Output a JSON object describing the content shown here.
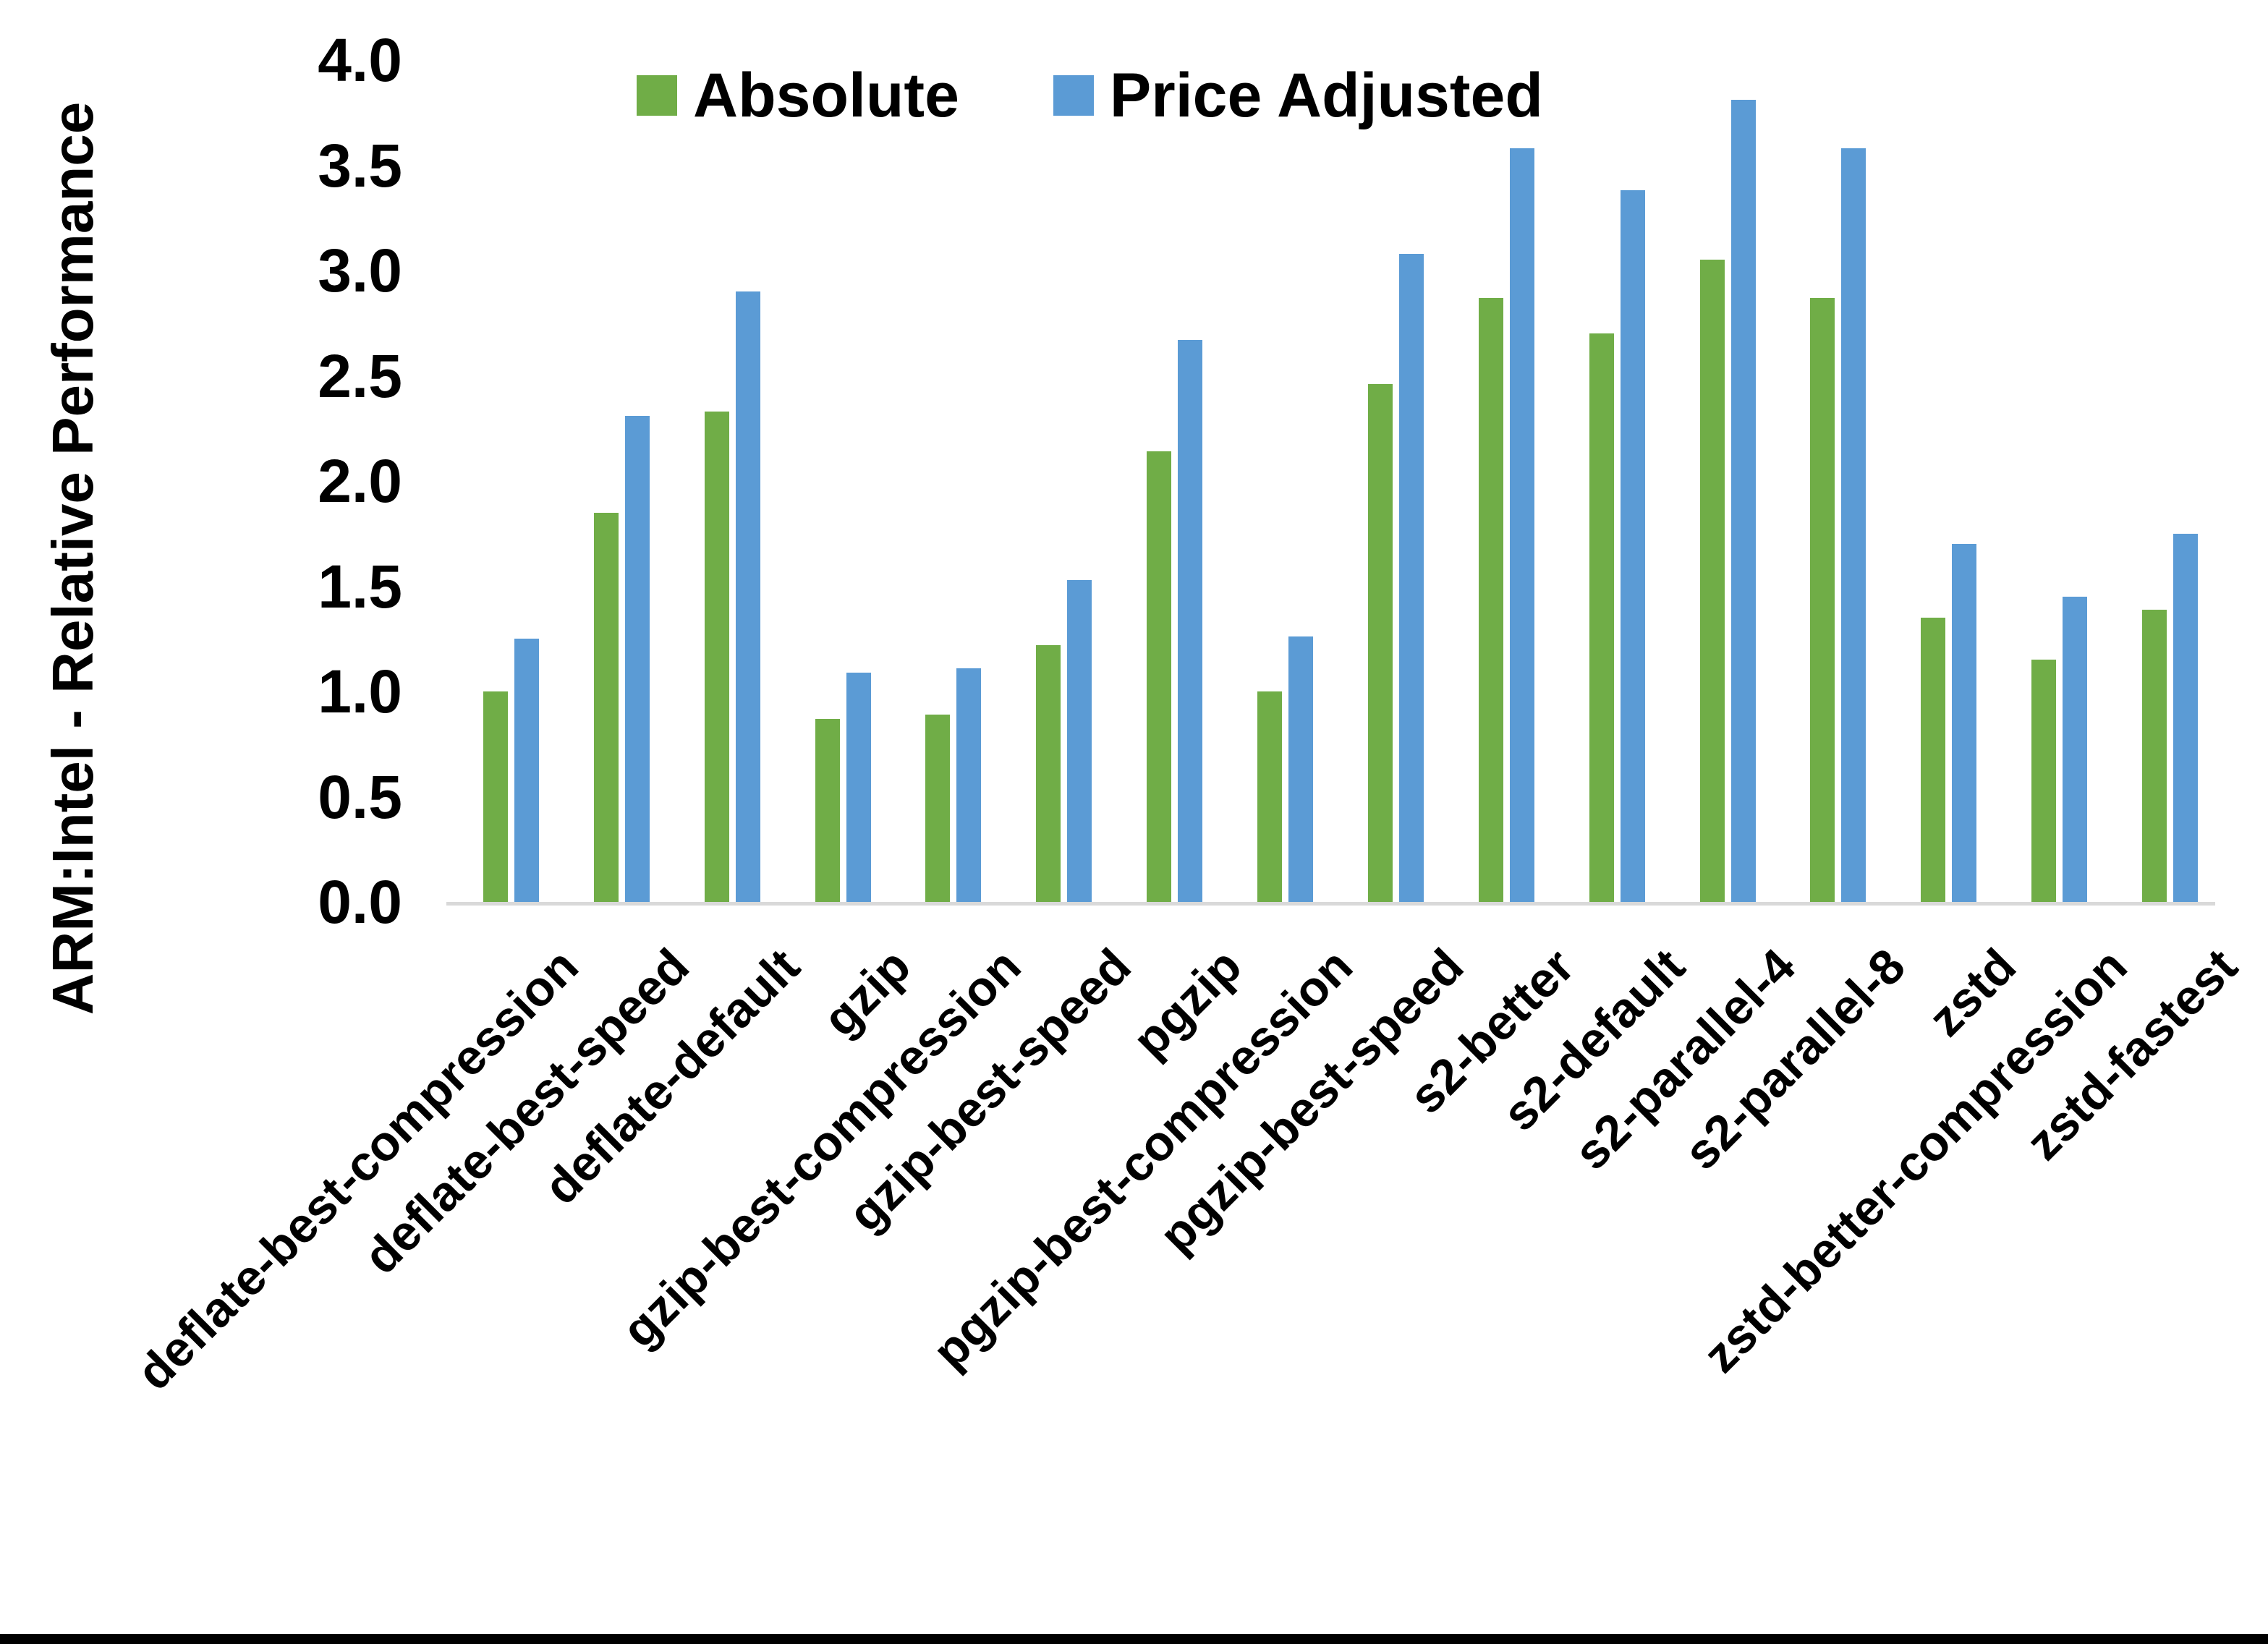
{
  "chart_data": {
    "type": "bar",
    "title": "",
    "xlabel": "",
    "ylabel": "ARM:Intel - Relative Performance",
    "ylim": [
      0.0,
      4.0
    ],
    "ytick_step": 0.5,
    "ytick_labels": [
      "0.0",
      "0.5",
      "1.0",
      "1.5",
      "2.0",
      "2.5",
      "3.0",
      "3.5",
      "4.0"
    ],
    "grid": false,
    "legend_position": "top-center",
    "categories": [
      "deflate-best-compression",
      "deflate-best-speed",
      "deflate-default",
      "gzip",
      "gzip-best-compression",
      "gzip-best-speed",
      "pgzip",
      "pgzip-best-compression",
      "pgzip-best-speed",
      "s2-better",
      "s2-default",
      "s2-parallel-4",
      "s2-parallel-8",
      "zstd",
      "zstd-better-compression",
      "zstd-fastest"
    ],
    "series": [
      {
        "name": "Absolute",
        "color": "#70AD47",
        "values": [
          1.0,
          1.85,
          2.33,
          0.87,
          0.89,
          1.22,
          2.14,
          1.0,
          2.46,
          2.87,
          2.7,
          3.05,
          2.87,
          1.35,
          1.15,
          1.39
        ]
      },
      {
        "name": "Price Adjusted",
        "color": "#5B9BD5",
        "values": [
          1.25,
          2.31,
          2.9,
          1.09,
          1.11,
          1.53,
          2.67,
          1.26,
          3.08,
          3.58,
          3.38,
          3.81,
          3.58,
          1.7,
          1.45,
          1.75
        ]
      }
    ]
  },
  "legend": {
    "items": [
      {
        "label": "Absolute",
        "swatch_color": "#70AD47"
      },
      {
        "label": "Price Adjusted",
        "swatch_color": "#5B9BD5"
      }
    ]
  },
  "colors": {
    "background": "#FFFFFF",
    "text": "#000000",
    "axis_line": "#D9D9D9",
    "bottom_border": "#000000"
  }
}
